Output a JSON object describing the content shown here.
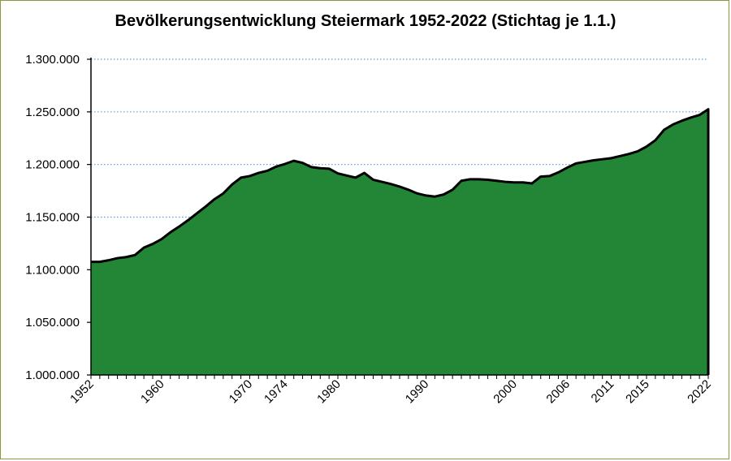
{
  "chart_data": {
    "type": "area",
    "title": "Bevölkerungsentwicklung Steiermark 1952-2022 (Stichtag je 1.1.)",
    "xlabel": "",
    "ylabel": "",
    "ylim": [
      1000000,
      1300000
    ],
    "y_ticks": [
      1000000,
      1050000,
      1100000,
      1150000,
      1200000,
      1250000,
      1300000
    ],
    "y_tick_labels": [
      "1.000.000",
      "1.050.000",
      "1.100.000",
      "1.150.000",
      "1.200.000",
      "1.250.000",
      "1.300.000"
    ],
    "x_tick_labels": [
      "1952",
      "1960",
      "1970",
      "1974",
      "1980",
      "1990",
      "2000",
      "2006",
      "2011",
      "2015",
      "2022"
    ],
    "grid": "horizontal dotted",
    "colors": {
      "area": "#238636",
      "line": "#000000",
      "grid": "#5b9bd5"
    },
    "x": [
      1952,
      1953,
      1954,
      1955,
      1956,
      1957,
      1958,
      1959,
      1960,
      1961,
      1962,
      1963,
      1964,
      1965,
      1966,
      1967,
      1968,
      1969,
      1970,
      1971,
      1972,
      1973,
      1974,
      1975,
      1976,
      1977,
      1978,
      1979,
      1980,
      1981,
      1982,
      1983,
      1984,
      1985,
      1986,
      1987,
      1988,
      1989,
      1990,
      1991,
      1992,
      1993,
      1994,
      1995,
      1996,
      1997,
      1998,
      1999,
      2000,
      2001,
      2002,
      2003,
      2004,
      2005,
      2006,
      2007,
      2008,
      2009,
      2010,
      2011,
      2012,
      2013,
      2014,
      2015,
      2016,
      2017,
      2018,
      2019,
      2020,
      2021,
      2022
    ],
    "values": [
      1107500,
      1107500,
      1109000,
      1111000,
      1112000,
      1114000,
      1121000,
      1124500,
      1129000,
      1135500,
      1141000,
      1147000,
      1153500,
      1160000,
      1167000,
      1172500,
      1181000,
      1187500,
      1189000,
      1192000,
      1194000,
      1198000,
      1200500,
      1203500,
      1201500,
      1197500,
      1196500,
      1196000,
      1191500,
      1189500,
      1187500,
      1192000,
      1185500,
      1183500,
      1181500,
      1179000,
      1176000,
      1172500,
      1170500,
      1169500,
      1171500,
      1176000,
      1184500,
      1186000,
      1186000,
      1185500,
      1184500,
      1183500,
      1183000,
      1183000,
      1182000,
      1188500,
      1189000,
      1192500,
      1197000,
      1201000,
      1202500,
      1204000,
      1205000,
      1206000,
      1208000,
      1210000,
      1212500,
      1217000,
      1223000,
      1233000,
      1238000,
      1241500,
      1244500,
      1247000,
      1252500
    ]
  }
}
